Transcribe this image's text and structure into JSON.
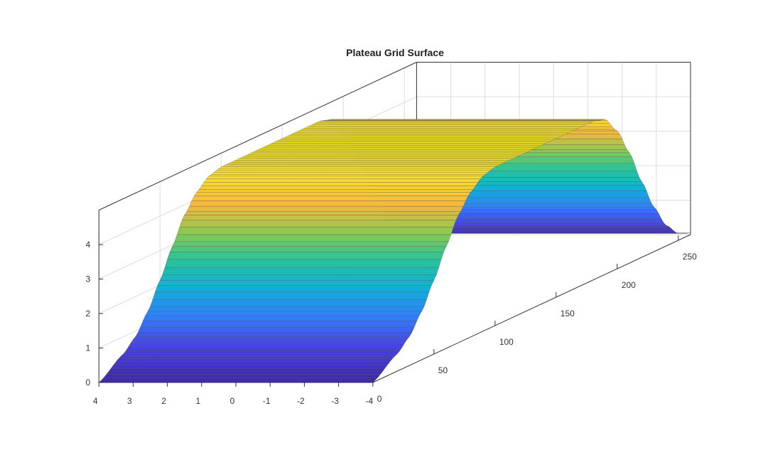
{
  "chart_data": {
    "type": "surface",
    "title": "Plateau Grid Surface",
    "xlabel": "",
    "ylabel": "",
    "zlabel": "",
    "x_ticks": [
      "4",
      "3",
      "2",
      "1",
      "0",
      "-1",
      "-2",
      "-3",
      "-4"
    ],
    "y_ticks": [
      "0",
      "50",
      "100",
      "150",
      "200",
      "250"
    ],
    "z_ticks": [
      "0",
      "1",
      "2",
      "3",
      "4"
    ],
    "xlim": [
      -4,
      4
    ],
    "ylim": [
      0,
      260
    ],
    "zlim": [
      0,
      5
    ],
    "grid": true,
    "colormap": "parula",
    "colormap_stops": [
      "#3e26a8",
      "#4743e6",
      "#2f82fb",
      "#10b1d6",
      "#28c39a",
      "#8cc951",
      "#f6b83c",
      "#f9e721"
    ],
    "edge_color": "#555555",
    "surface": {
      "description_formula": "z depends only on y (plateau profile)",
      "y_samples": [
        0,
        20,
        30,
        40,
        50,
        60,
        70,
        80,
        90,
        100,
        110,
        120,
        130,
        140,
        150,
        160,
        170,
        180,
        190,
        200,
        210,
        220,
        230,
        240,
        250,
        260
      ],
      "z_values": [
        0,
        0.5,
        0.84,
        1.4,
        2.14,
        2.95,
        3.7,
        4.2,
        4.5,
        4.6,
        4.6,
        4.6,
        4.6,
        4.6,
        4.6,
        4.6,
        4.6,
        4.6,
        4.5,
        4.0,
        3.2,
        2.2,
        1.3,
        0.6,
        0.2,
        0.05
      ]
    }
  }
}
